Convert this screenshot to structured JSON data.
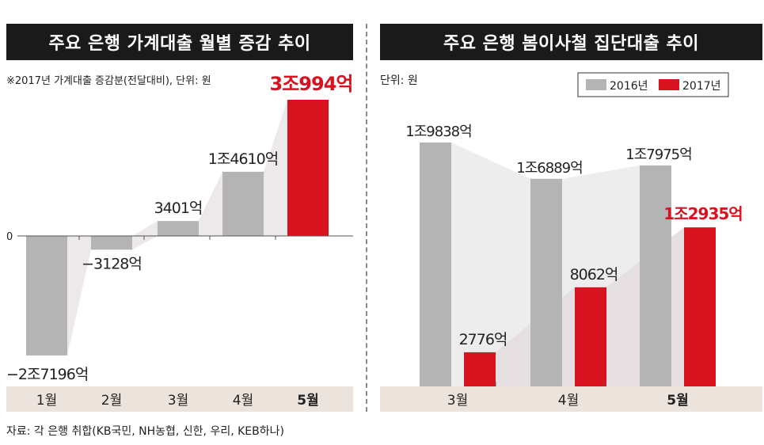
{
  "left": {
    "title": "주요 은행 가계대출 월별 증감 추이",
    "note": "※2017년 가계대출 증감분(전달대비), 단위: 원",
    "zero_label": "0",
    "chart_data": {
      "type": "bar",
      "categories": [
        "1월",
        "2월",
        "3월",
        "4월",
        "5월"
      ],
      "values": [
        -27196,
        -3128,
        3401,
        14610,
        30994
      ],
      "value_labels": [
        "−2조7196억",
        "−3128억",
        "3401억",
        "1조4610억",
        "3조994억"
      ],
      "unit": "억원",
      "highlight_index": 4,
      "colors": {
        "normal": "#b4b4b4",
        "highlight": "#d9121f",
        "band": "#ede8ea"
      }
    }
  },
  "right": {
    "title": "주요 은행 봄이사철 집단대출 추이",
    "unit": "단위: 원",
    "chart_data": {
      "type": "bar",
      "categories": [
        "3월",
        "4월",
        "5월"
      ],
      "series": [
        {
          "name": "2016년",
          "values": [
            19838,
            16889,
            17975
          ],
          "labels": [
            "1조9838억",
            "1조6889억",
            "1조7975억"
          ],
          "color": "#b4b4b4"
        },
        {
          "name": "2017년",
          "values": [
            2776,
            8062,
            12935
          ],
          "labels": [
            "2776억",
            "8062억",
            "1조2935억"
          ],
          "color": "#d9121f"
        }
      ],
      "unit": "억원",
      "highlight_index": 2
    }
  },
  "source": "자료: 각 은행 취합(KB국민, NH농협, 신한, 우리, KEB하나)"
}
